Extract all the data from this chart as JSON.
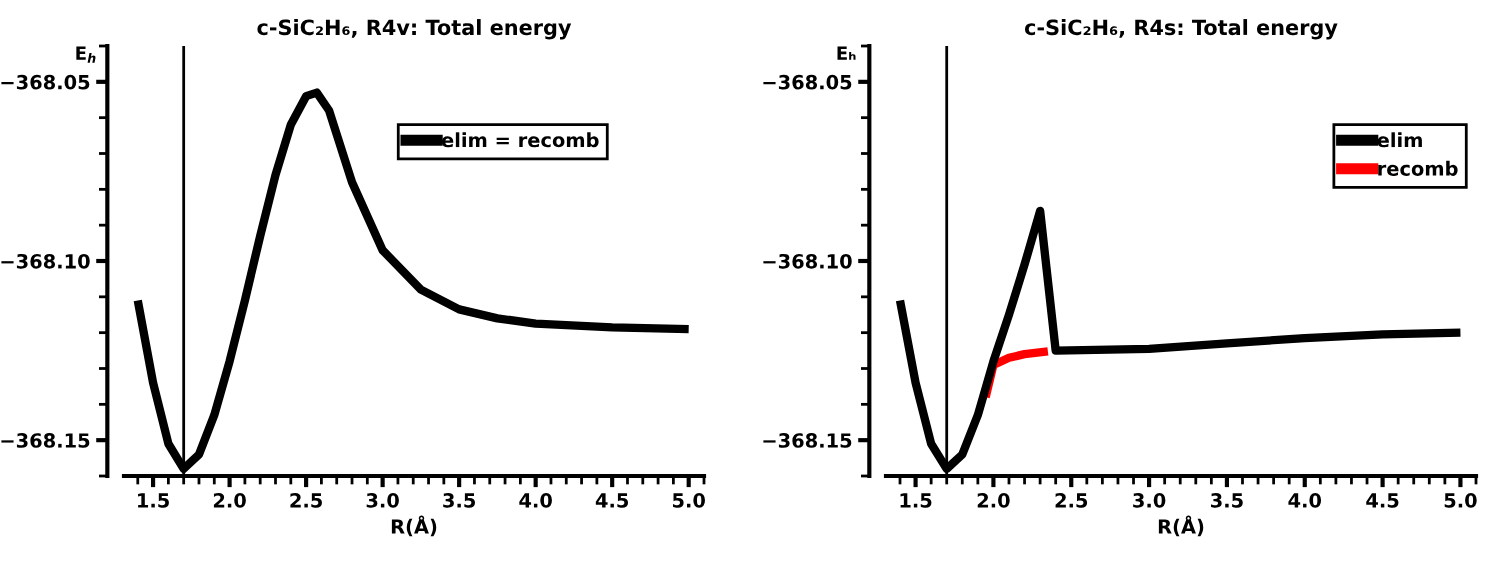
{
  "chart_data": [
    {
      "type": "line",
      "title": "c-SiC₂H₆, R4v: Total energy",
      "xlabel": "R(Å)",
      "ylabel": "E$_{h}$",
      "xlim": [
        1.31,
        5.1
      ],
      "ylim": [
        -368.16,
        -368.04
      ],
      "xticks": [
        {
          "value": 1.5,
          "label": "1.5"
        },
        {
          "value": 2,
          "label": "2.0"
        },
        {
          "value": 2.5,
          "label": "2.5"
        },
        {
          "value": 3,
          "label": "3.0"
        },
        {
          "value": 3.5,
          "label": "3.5"
        },
        {
          "value": 4,
          "label": "4.0"
        },
        {
          "value": 4.5,
          "label": "4.5"
        },
        {
          "value": 5,
          "label": "5.0"
        }
      ],
      "yticks": [
        {
          "value": -368.15,
          "label": "−368.15"
        },
        {
          "value": -368.1,
          "label": "−368.10"
        },
        {
          "value": -368.05,
          "label": "−368.05"
        }
      ],
      "ref_lines": [
        {
          "axis": "x",
          "value": 1.7
        }
      ],
      "legend": "top right",
      "grid": false,
      "series": [
        {
          "name": "elim = recomb",
          "color": "#000000",
          "x": [
            1.4,
            1.5,
            1.6,
            1.7,
            1.8,
            1.9,
            2.0,
            2.1,
            2.2,
            2.3,
            2.4,
            2.5,
            2.57,
            2.65,
            2.8,
            3.0,
            3.25,
            3.5,
            3.75,
            4.0,
            4.5,
            5.0
          ],
          "values": [
            -368.111,
            -368.134,
            -368.151,
            -368.158,
            -368.154,
            -368.143,
            -368.128,
            -368.111,
            -368.093,
            -368.076,
            -368.062,
            -368.054,
            -368.053,
            -368.058,
            -368.078,
            -368.097,
            -368.108,
            -368.1135,
            -368.116,
            -368.1175,
            -368.1185,
            -368.119
          ]
        }
      ]
    },
    {
      "type": "line",
      "title": "c-SiC₂H₆, R4s: Total energy",
      "xlabel": "R(Å)",
      "ylabel": "Eₕ",
      "xlim": [
        1.31,
        5.1
      ],
      "ylim": [
        -368.16,
        -368.04
      ],
      "xticks": [
        {
          "value": 1.5,
          "label": "1.5"
        },
        {
          "value": 2,
          "label": "2.0"
        },
        {
          "value": 2.5,
          "label": "2.5"
        },
        {
          "value": 3,
          "label": "3.0"
        },
        {
          "value": 3.5,
          "label": "3.5"
        },
        {
          "value": 4,
          "label": "4.0"
        },
        {
          "value": 4.5,
          "label": "4.5"
        },
        {
          "value": 5,
          "label": "5.0"
        }
      ],
      "yticks": [
        {
          "value": -368.15,
          "label": "−368.15"
        },
        {
          "value": -368.1,
          "label": "−368.10"
        },
        {
          "value": -368.05,
          "label": "−368.05"
        }
      ],
      "ref_lines": [
        {
          "axis": "x",
          "value": 1.7
        }
      ],
      "legend": "top right",
      "grid": false,
      "series": [
        {
          "name": "elim",
          "color": "#000000",
          "x": [
            1.4,
            1.5,
            1.6,
            1.7,
            1.8,
            1.9,
            2.0,
            2.1,
            2.2,
            2.3,
            2.4,
            3.0,
            3.5,
            4.0,
            4.5,
            5.0
          ],
          "values": [
            -368.111,
            -368.134,
            -368.151,
            -368.158,
            -368.154,
            -368.143,
            -368.128,
            -368.115,
            -368.101,
            -368.086,
            -368.125,
            -368.1245,
            -368.123,
            -368.1215,
            -368.1205,
            -368.12
          ]
        },
        {
          "name": "recomb",
          "color": "#ff0000",
          "x": [
            1.95,
            2.0,
            2.1,
            2.2,
            2.35
          ],
          "values": [
            -368.138,
            -368.129,
            -368.127,
            -368.126,
            -368.1252
          ]
        }
      ]
    }
  ]
}
